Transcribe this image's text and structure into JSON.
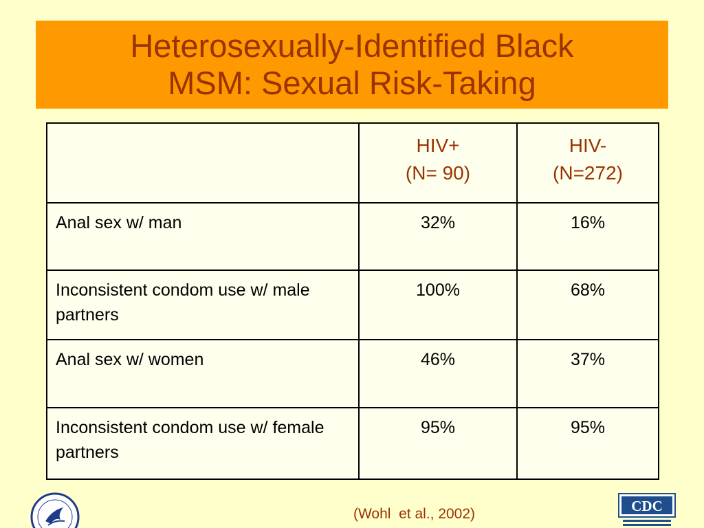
{
  "title": {
    "line1": "Heterosexually-Identified Black",
    "line2": "MSM: Sexual Risk-Taking"
  },
  "table": {
    "header": {
      "col1_line1": "HIV+",
      "col1_line2": "(N= 90)",
      "col2_line1": "HIV-",
      "col2_line2": "(N=272)"
    },
    "rows": [
      {
        "label": "Anal sex w/ man",
        "hiv_pos": "32%",
        "hiv_neg": "16%"
      },
      {
        "label": "Inconsistent condom use w/ male partners",
        "hiv_pos": "100%",
        "hiv_neg": "68%"
      },
      {
        "label": "Anal sex w/ women",
        "hiv_pos": "46%",
        "hiv_neg": "37%"
      },
      {
        "label": "Inconsistent condom use w/ female partners",
        "hiv_pos": "95%",
        "hiv_neg": "95%"
      }
    ]
  },
  "citation": "(Wohl  et al., 2002)",
  "logos": {
    "left": "hhs-seal",
    "right": {
      "name": "cdc-logo",
      "text": "CDC"
    }
  },
  "colors": {
    "background": "#ffffcc",
    "title_banner": "#ff9900",
    "title_text": "#993300",
    "header_text": "#993300",
    "cdc_blue": "#1f4e8c"
  }
}
